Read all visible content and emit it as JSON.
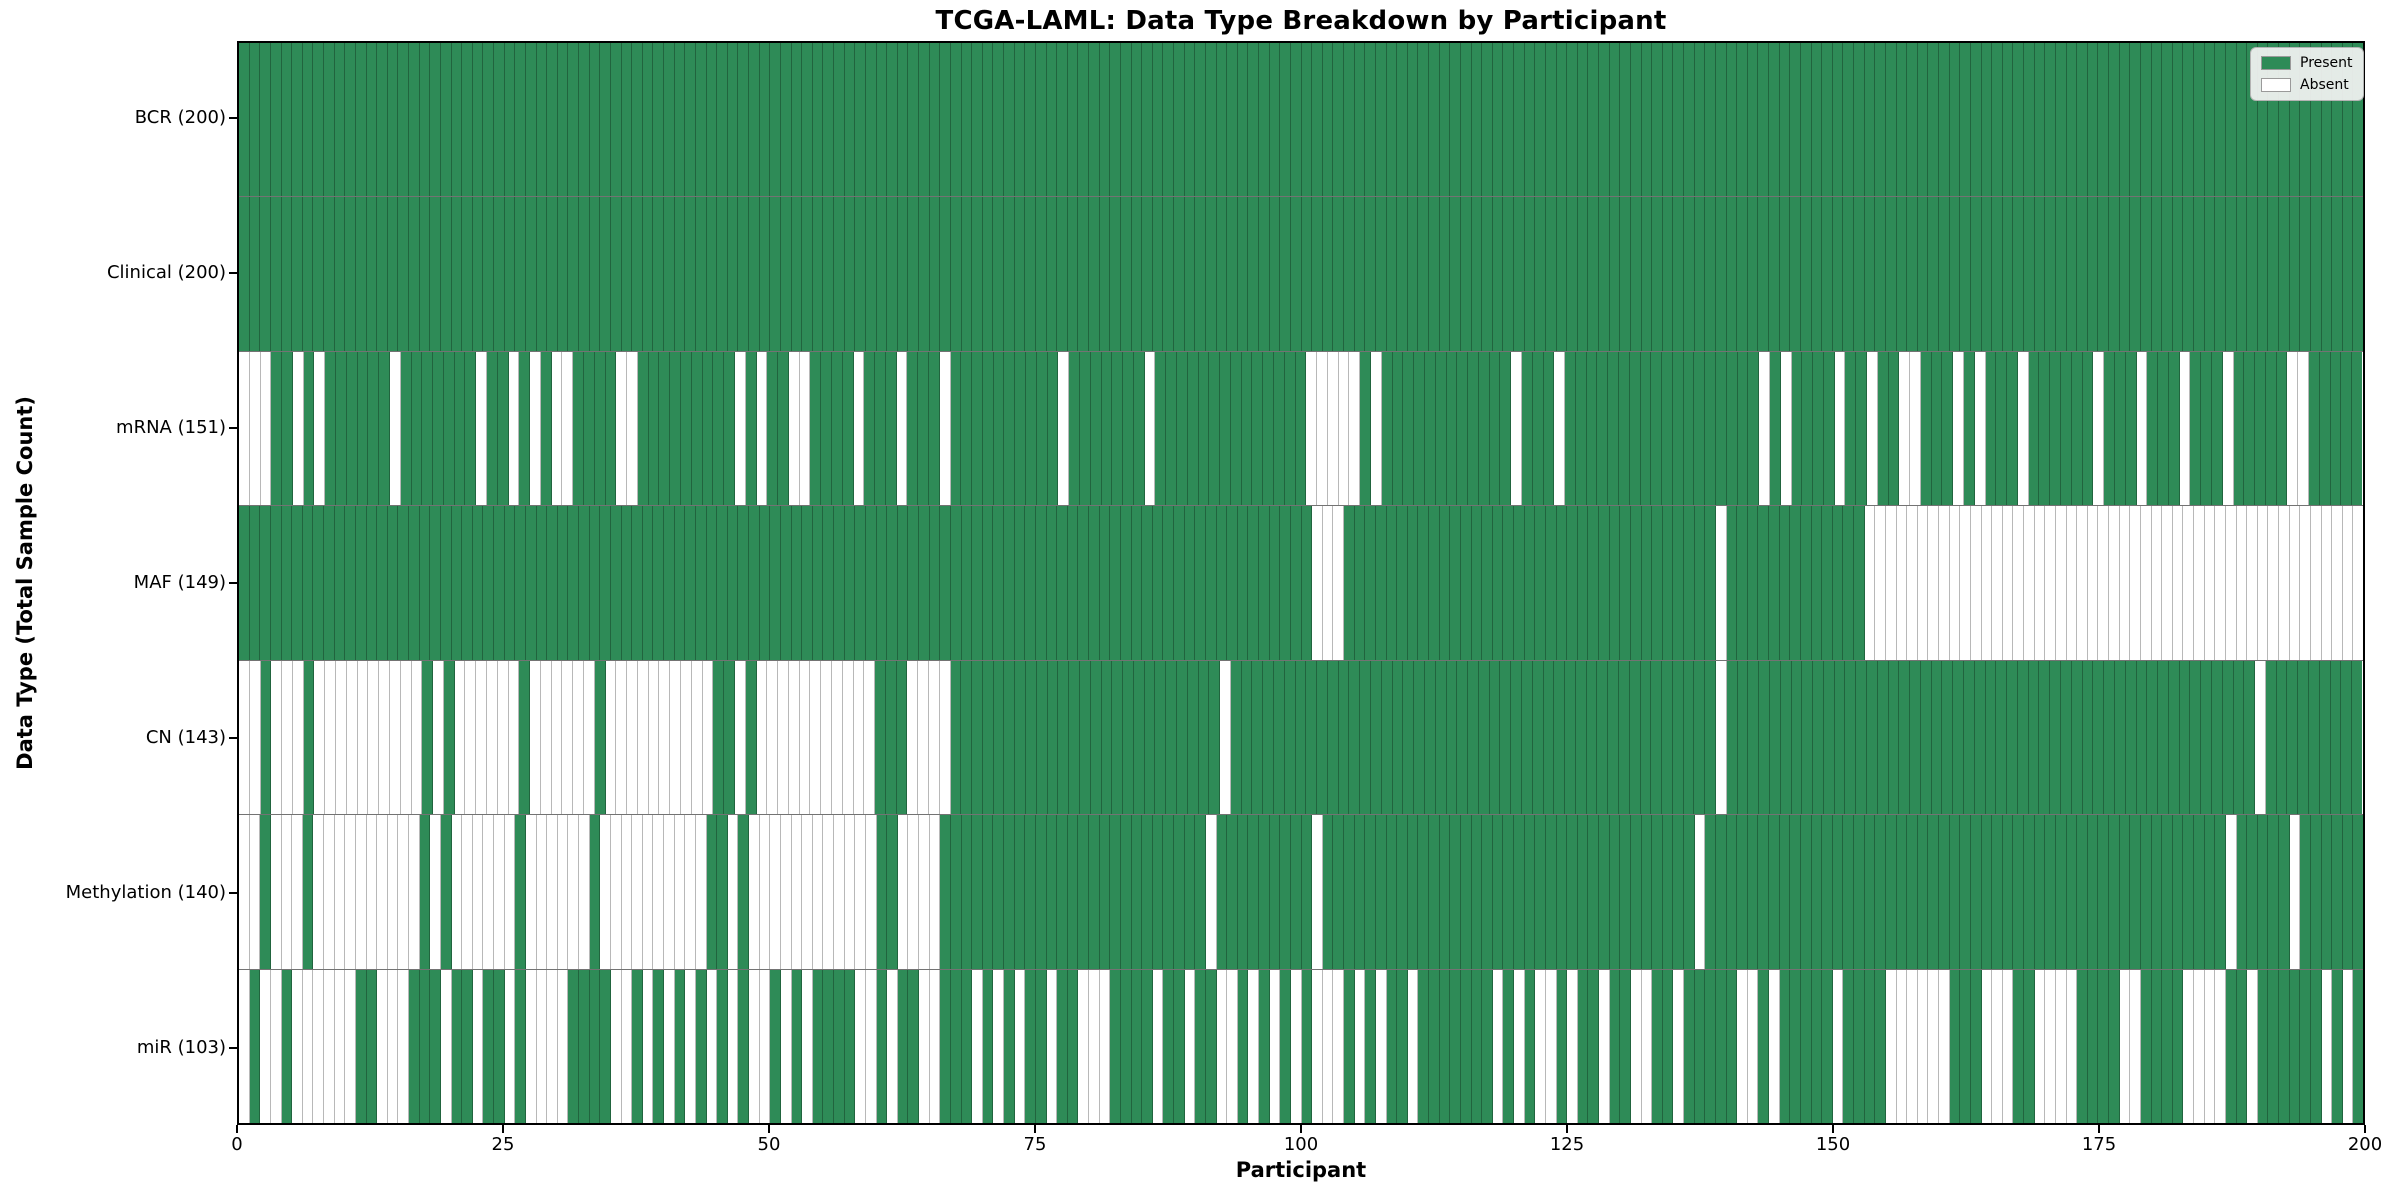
{
  "title": "TCGA-LAML: Data Type Breakdown by Participant",
  "xlabel": "Participant",
  "ylabel": "Data Type (Total Sample Count)",
  "colors": {
    "present": "#2e8b57",
    "absent": "#ffffff",
    "cell_border": "rgba(0,0,0,0.28)",
    "row_separator": "rgba(0,0,0,0.55)",
    "axis_frame": "#000000",
    "legend_background": "#f2f2f2",
    "legend_border": "#b3b3b3"
  },
  "chart_data": {
    "type": "heatmap",
    "title": "TCGA-LAML: Data Type Breakdown by Participant",
    "xlabel": "Participant",
    "ylabel": "Data Type (Total Sample Count)",
    "x_axis": {
      "min": 0,
      "max": 200,
      "ticks": [
        0,
        25,
        50,
        75,
        100,
        125,
        150,
        175,
        200
      ]
    },
    "grid": false,
    "legend_position": "upper right",
    "legend": [
      {
        "label": "Present",
        "color": "#2e8b57"
      },
      {
        "label": "Absent",
        "color": "#ffffff"
      }
    ],
    "value_encoding": {
      "1": "Present",
      "0": "Absent"
    },
    "n_participants": 200,
    "rows": [
      {
        "label": "BCR (200)",
        "data_type": "BCR",
        "total_sample_count": 200,
        "pattern": "11111111111111111111111111111111111111111111111111111111111111111111111111111111111111111111111111111111111111111111111111111111111111111111111111111111111111111111111111111111111111111111111111111111"
      },
      {
        "label": "Clinical (200)",
        "data_type": "Clinical",
        "total_sample_count": 200,
        "pattern": "11111111111111111111111111111111111111111111111111111111111111111111111111111111111111111111111111111111111111111111111111111111111111111111111111111111111111111111111111111111111111111111111111111111"
      },
      {
        "label": "mRNA (151)",
        "data_type": "mRNA",
        "total_sample_count": 151,
        "pattern": "00011010111111011111110110101001111001111111110101100111101110111011111111110111111101111111111111100000101111111111110111011111111111111111101011110110110011101011101111110111011101110111110011111"
      },
      {
        "label": "MAF (149)",
        "data_type": "MAF",
        "total_sample_count": 149,
        "pattern": "11111111111111111111111111111111111111111111111111111111111111111111111111111111111111111111111111111000111111111111111111111111111111111110111111111111100000000000000000000000000000000000000000000000"
      },
      {
        "label": "CN (143)",
        "data_type": "CN",
        "total_sample_count": 143,
        "pattern": "00100010000000000101000000100000010000000000110100000000000111000011111111111111111111111110111111111111111111111111111111111111111111111011111111111111111111111111111111111111111111111110111111111"
      },
      {
        "label": "Methylation (140)",
        "data_type": "Methylation",
        "total_sample_count": 140,
        "pattern": "00100010000000000101000000100000010000000000110100000000000011000011111111111111111111111110111111111011111111111111111111111111111111111011111111111111111111111111111111111111111111111110111110111111111"
      },
      {
        "label": "miR (103)",
        "data_type": "miR",
        "total_sample_count": 103,
        "pattern": "01001000000110001110110110100001111001010101010100101011110010110011101010110110001111011011001010101000101011011111110101001011011001101111100101111101111000000111000110000111100111100001101111110101"
      }
    ]
  }
}
